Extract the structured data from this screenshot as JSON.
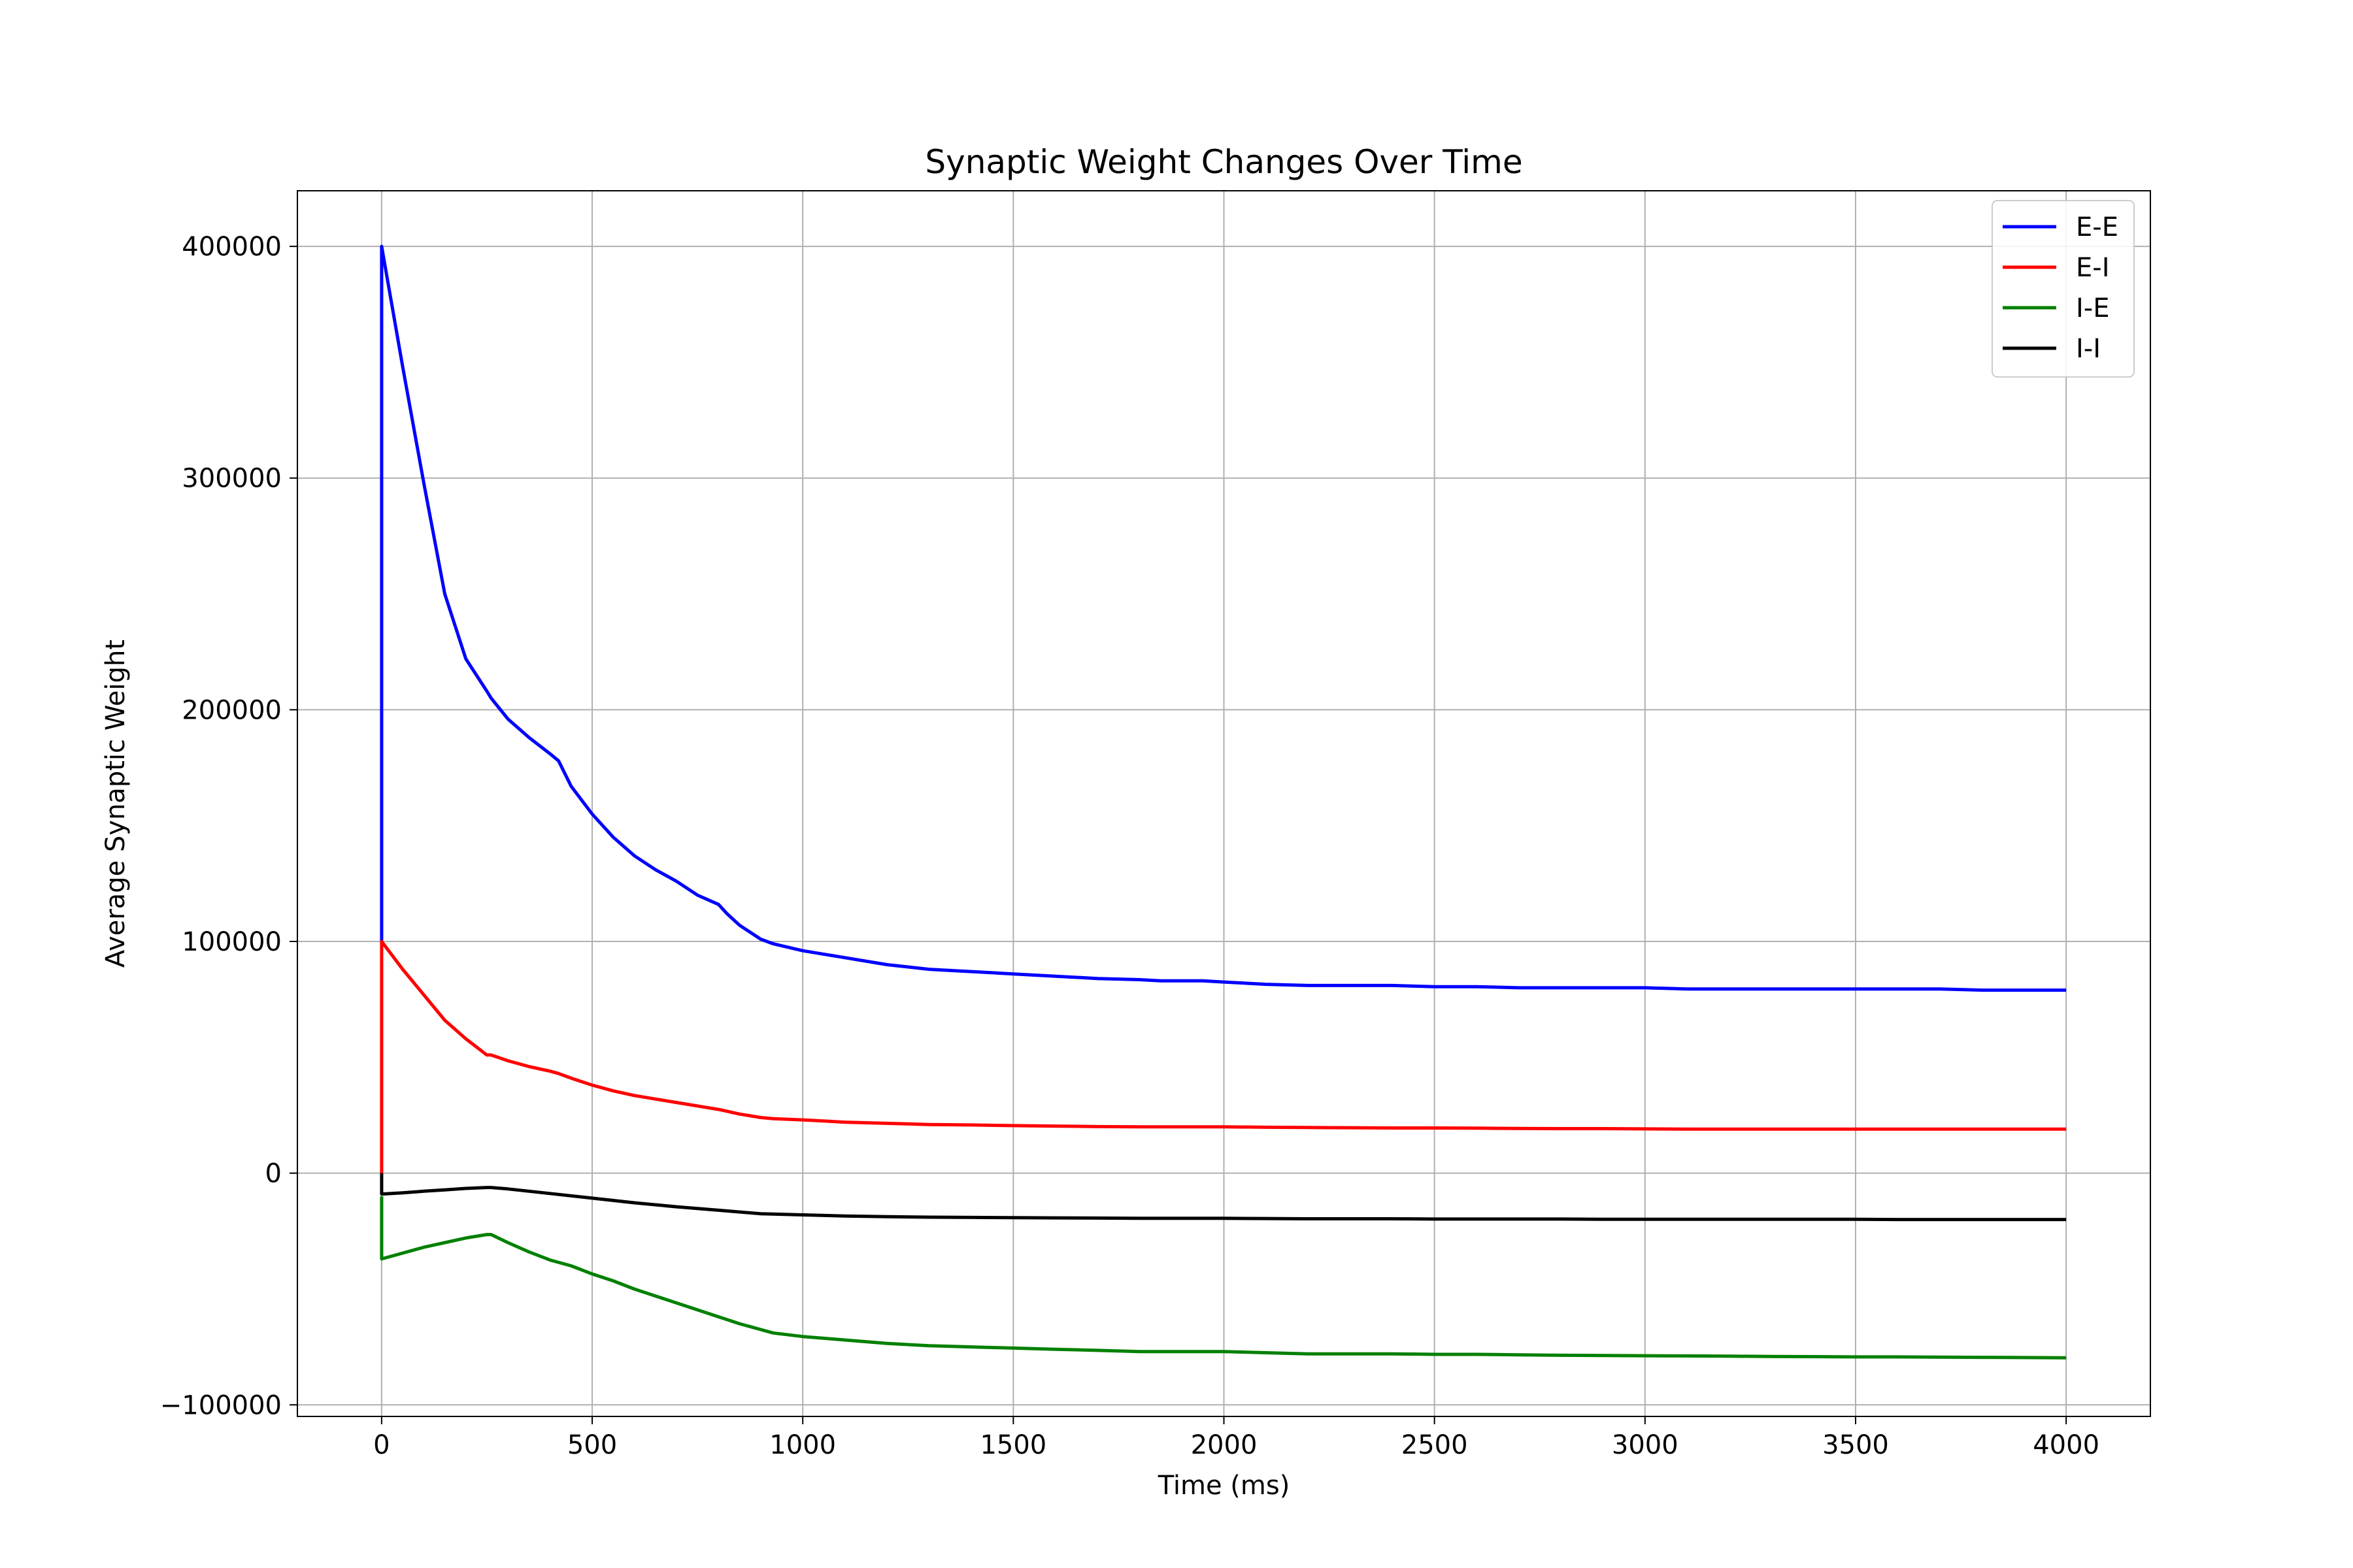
{
  "chart_data": {
    "type": "line",
    "title": "Synaptic Weight Changes Over Time",
    "xlabel": "Time (ms)",
    "ylabel": "Average Synaptic Weight",
    "xlim": [
      -200,
      4200
    ],
    "ylim": [
      -105000,
      424000
    ],
    "x_ticks": [
      0,
      500,
      1000,
      1500,
      2000,
      2500,
      3000,
      3500,
      4000
    ],
    "x_tick_labels": [
      "0",
      "500",
      "1000",
      "1500",
      "2000",
      "2500",
      "3000",
      "3500",
      "4000"
    ],
    "y_ticks": [
      -100000,
      0,
      100000,
      200000,
      300000,
      400000
    ],
    "y_tick_labels": [
      "−100000",
      "0",
      "100000",
      "200000",
      "300000",
      "400000"
    ],
    "grid": true,
    "legend_position": "top-right",
    "series": [
      {
        "name": "E-E",
        "color": "#0000ff",
        "x": [
          0,
          0,
          50,
          100,
          150,
          200,
          250,
          260,
          300,
          350,
          400,
          420,
          450,
          500,
          550,
          600,
          650,
          700,
          750,
          800,
          820,
          850,
          900,
          930,
          1000,
          1100,
          1200,
          1300,
          1400,
          1500,
          1600,
          1700,
          1800,
          1850,
          1900,
          1950,
          2000,
          2100,
          2200,
          2300,
          2400,
          2500,
          2600,
          2700,
          2800,
          2900,
          3000,
          3100,
          3200,
          3300,
          3400,
          3500,
          3600,
          3700,
          3800,
          3900,
          4000
        ],
        "y": [
          100000,
          400000,
          348000,
          298000,
          250000,
          222000,
          208000,
          205000,
          196000,
          188000,
          181000,
          178000,
          167000,
          155000,
          145000,
          137000,
          131000,
          126000,
          120000,
          116000,
          112000,
          107000,
          101000,
          99000,
          96000,
          93000,
          90000,
          88000,
          87000,
          86000,
          85000,
          84000,
          83500,
          83000,
          83000,
          83000,
          82500,
          81500,
          81000,
          81000,
          81000,
          80500,
          80500,
          80000,
          80000,
          80000,
          80000,
          79500,
          79500,
          79500,
          79500,
          79500,
          79500,
          79500,
          79000,
          79000,
          79000
        ]
      },
      {
        "name": "E-I",
        "color": "#ff0000",
        "x": [
          0,
          0,
          50,
          100,
          150,
          200,
          250,
          260,
          300,
          350,
          400,
          420,
          450,
          500,
          550,
          600,
          650,
          700,
          750,
          800,
          850,
          900,
          930,
          1000,
          1100,
          1200,
          1300,
          1400,
          1500,
          1600,
          1700,
          1800,
          1900,
          2000,
          2100,
          2200,
          2300,
          2400,
          2500,
          2600,
          2700,
          2800,
          2900,
          3000,
          3100,
          3200,
          3300,
          3400,
          3500,
          3600,
          3700,
          3800,
          3900,
          4000
        ],
        "y": [
          0,
          100000,
          88000,
          77000,
          66000,
          58000,
          51000,
          51000,
          48500,
          46000,
          44000,
          43000,
          41000,
          38000,
          35500,
          33500,
          32000,
          30500,
          29000,
          27500,
          25500,
          24000,
          23500,
          23000,
          22000,
          21500,
          21000,
          20800,
          20500,
          20300,
          20100,
          20000,
          20000,
          20000,
          19800,
          19700,
          19600,
          19500,
          19500,
          19400,
          19300,
          19200,
          19200,
          19100,
          19000,
          19000,
          19000,
          19000,
          19000,
          19000,
          19000,
          19000,
          19000,
          19000
        ]
      },
      {
        "name": "I-E",
        "color": "#008000",
        "x": [
          0,
          0,
          50,
          100,
          150,
          200,
          250,
          260,
          300,
          350,
          400,
          450,
          500,
          550,
          600,
          650,
          700,
          750,
          800,
          850,
          900,
          930,
          1000,
          1100,
          1200,
          1300,
          1400,
          1500,
          1600,
          1700,
          1800,
          1900,
          2000,
          2100,
          2200,
          2300,
          2400,
          2500,
          2600,
          2700,
          2800,
          2900,
          3000,
          3100,
          3200,
          3300,
          3400,
          3500,
          3600,
          3700,
          3800,
          3900,
          4000
        ],
        "y": [
          -10000,
          -37000,
          -34500,
          -32000,
          -30000,
          -28000,
          -26500,
          -26500,
          -30000,
          -34000,
          -37500,
          -40000,
          -43500,
          -46500,
          -50000,
          -53000,
          -56000,
          -59000,
          -62000,
          -65000,
          -67500,
          -69000,
          -70500,
          -72000,
          -73500,
          -74500,
          -75000,
          -75500,
          -76000,
          -76500,
          -77000,
          -77000,
          -77000,
          -77500,
          -78000,
          -78000,
          -78000,
          -78200,
          -78200,
          -78400,
          -78600,
          -78700,
          -78800,
          -78900,
          -79000,
          -79100,
          -79200,
          -79300,
          -79300,
          -79400,
          -79500,
          -79600,
          -79700
        ]
      },
      {
        "name": "I-I",
        "color": "#000000",
        "x": [
          0,
          0,
          50,
          100,
          150,
          200,
          250,
          260,
          300,
          400,
          500,
          600,
          700,
          800,
          900,
          1000,
          1100,
          1200,
          1300,
          1400,
          1500,
          1600,
          1700,
          1800,
          1900,
          2000,
          2100,
          2200,
          2300,
          2400,
          2500,
          2600,
          2700,
          2800,
          2900,
          3000,
          3100,
          3200,
          3300,
          3400,
          3500,
          3600,
          3700,
          3800,
          3900,
          4000
        ],
        "y": [
          0,
          -9000,
          -8500,
          -7800,
          -7200,
          -6600,
          -6200,
          -6200,
          -6800,
          -8800,
          -10800,
          -12800,
          -14500,
          -16000,
          -17500,
          -18000,
          -18500,
          -18800,
          -19000,
          -19100,
          -19200,
          -19300,
          -19400,
          -19500,
          -19500,
          -19500,
          -19600,
          -19700,
          -19700,
          -19700,
          -19800,
          -19800,
          -19800,
          -19800,
          -19900,
          -19900,
          -19900,
          -19900,
          -19900,
          -19900,
          -19900,
          -20000,
          -20000,
          -20000,
          -20000,
          -20000
        ]
      }
    ]
  }
}
